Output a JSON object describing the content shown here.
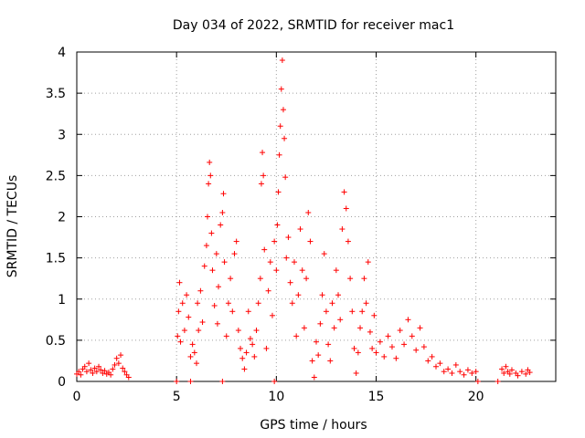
{
  "chart_data": {
    "type": "scatter",
    "title": "Day 034 of 2022, SRMTID for receiver mac1",
    "xlabel": "GPS time / hours",
    "ylabel": "SRMTID / TECUs",
    "xlim": [
      0,
      24
    ],
    "ylim": [
      0,
      4
    ],
    "xticks": [
      0,
      5,
      10,
      15,
      20
    ],
    "yticks": [
      0,
      0.5,
      1,
      1.5,
      2,
      2.5,
      3,
      3.5,
      4
    ],
    "ytick_labels": [
      "0",
      "0.5",
      "1",
      "1.5",
      "2",
      "2.5",
      "3",
      "3.5",
      "4"
    ],
    "grid": true,
    "marker": "+",
    "marker_color": "#ff0000",
    "series": [
      {
        "name": "SRMTID",
        "points": [
          [
            0.0,
            0.09
          ],
          [
            0.1,
            0.12
          ],
          [
            0.2,
            0.08
          ],
          [
            0.3,
            0.15
          ],
          [
            0.4,
            0.18
          ],
          [
            0.5,
            0.12
          ],
          [
            0.6,
            0.22
          ],
          [
            0.7,
            0.14
          ],
          [
            0.8,
            0.1
          ],
          [
            0.9,
            0.16
          ],
          [
            1.0,
            0.12
          ],
          [
            1.1,
            0.18
          ],
          [
            1.2,
            0.14
          ],
          [
            1.3,
            0.1
          ],
          [
            1.4,
            0.13
          ],
          [
            1.5,
            0.09
          ],
          [
            1.6,
            0.11
          ],
          [
            1.7,
            0.08
          ],
          [
            1.8,
            0.15
          ],
          [
            1.9,
            0.2
          ],
          [
            2.0,
            0.28
          ],
          [
            2.1,
            0.22
          ],
          [
            2.2,
            0.32
          ],
          [
            2.3,
            0.16
          ],
          [
            2.4,
            0.12
          ],
          [
            2.5,
            0.08
          ],
          [
            2.6,
            0.05
          ],
          [
            5.0,
            0.0
          ],
          [
            5.7,
            0.0
          ],
          [
            7.3,
            0.0
          ],
          [
            9.9,
            0.0
          ],
          [
            20.1,
            0.0
          ],
          [
            21.1,
            0.0
          ],
          [
            5.05,
            0.55
          ],
          [
            5.1,
            0.85
          ],
          [
            5.15,
            1.2
          ],
          [
            5.2,
            0.48
          ],
          [
            5.3,
            0.95
          ],
          [
            5.4,
            0.62
          ],
          [
            5.5,
            1.05
          ],
          [
            5.6,
            0.78
          ],
          [
            5.7,
            0.3
          ],
          [
            5.8,
            0.45
          ],
          [
            5.9,
            0.35
          ],
          [
            6.0,
            0.22
          ],
          [
            6.05,
            0.95
          ],
          [
            6.1,
            0.62
          ],
          [
            6.2,
            1.1
          ],
          [
            6.3,
            0.72
          ],
          [
            6.4,
            1.4
          ],
          [
            6.5,
            1.65
          ],
          [
            6.55,
            2.0
          ],
          [
            6.6,
            2.4
          ],
          [
            6.65,
            2.66
          ],
          [
            6.7,
            2.5
          ],
          [
            6.75,
            1.8
          ],
          [
            6.8,
            1.35
          ],
          [
            6.9,
            0.92
          ],
          [
            7.0,
            1.55
          ],
          [
            7.05,
            0.7
          ],
          [
            7.1,
            1.15
          ],
          [
            7.2,
            1.9
          ],
          [
            7.3,
            2.05
          ],
          [
            7.35,
            2.28
          ],
          [
            7.4,
            1.45
          ],
          [
            7.5,
            0.55
          ],
          [
            7.6,
            0.95
          ],
          [
            7.7,
            1.25
          ],
          [
            7.8,
            0.85
          ],
          [
            7.9,
            1.55
          ],
          [
            8.0,
            1.7
          ],
          [
            8.1,
            0.62
          ],
          [
            8.2,
            0.4
          ],
          [
            8.3,
            0.28
          ],
          [
            8.4,
            0.15
          ],
          [
            8.5,
            0.35
          ],
          [
            8.6,
            0.85
          ],
          [
            8.7,
            0.52
          ],
          [
            8.8,
            0.45
          ],
          [
            8.9,
            0.3
          ],
          [
            9.0,
            0.62
          ],
          [
            9.1,
            0.95
          ],
          [
            9.2,
            1.25
          ],
          [
            9.25,
            2.4
          ],
          [
            9.3,
            2.78
          ],
          [
            9.35,
            2.5
          ],
          [
            9.4,
            1.6
          ],
          [
            9.5,
            0.4
          ],
          [
            9.6,
            1.1
          ],
          [
            9.7,
            1.45
          ],
          [
            9.8,
            0.8
          ],
          [
            9.9,
            1.7
          ],
          [
            10.0,
            1.35
          ],
          [
            10.05,
            1.9
          ],
          [
            10.1,
            2.3
          ],
          [
            10.15,
            2.75
          ],
          [
            10.2,
            3.1
          ],
          [
            10.25,
            3.55
          ],
          [
            10.3,
            3.9
          ],
          [
            10.35,
            3.3
          ],
          [
            10.4,
            2.95
          ],
          [
            10.45,
            2.48
          ],
          [
            10.5,
            1.5
          ],
          [
            10.6,
            1.75
          ],
          [
            10.7,
            1.2
          ],
          [
            10.8,
            0.95
          ],
          [
            10.9,
            1.45
          ],
          [
            11.0,
            0.55
          ],
          [
            11.1,
            1.05
          ],
          [
            11.2,
            1.85
          ],
          [
            11.3,
            1.35
          ],
          [
            11.4,
            0.65
          ],
          [
            11.5,
            1.25
          ],
          [
            11.6,
            2.05
          ],
          [
            11.7,
            1.7
          ],
          [
            11.8,
            0.25
          ],
          [
            11.9,
            0.05
          ],
          [
            12.0,
            0.48
          ],
          [
            12.1,
            0.32
          ],
          [
            12.2,
            0.7
          ],
          [
            12.3,
            1.05
          ],
          [
            12.4,
            1.55
          ],
          [
            12.5,
            0.85
          ],
          [
            12.6,
            0.45
          ],
          [
            12.7,
            0.25
          ],
          [
            12.8,
            0.95
          ],
          [
            12.9,
            0.65
          ],
          [
            13.0,
            1.35
          ],
          [
            13.1,
            1.05
          ],
          [
            13.2,
            0.75
          ],
          [
            13.3,
            1.85
          ],
          [
            13.4,
            2.3
          ],
          [
            13.5,
            2.1
          ],
          [
            13.6,
            1.7
          ],
          [
            13.7,
            1.25
          ],
          [
            13.8,
            0.85
          ],
          [
            13.9,
            0.4
          ],
          [
            14.0,
            0.1
          ],
          [
            14.1,
            0.35
          ],
          [
            14.2,
            0.65
          ],
          [
            14.3,
            0.85
          ],
          [
            14.4,
            1.25
          ],
          [
            14.5,
            0.95
          ],
          [
            14.6,
            1.45
          ],
          [
            14.7,
            0.6
          ],
          [
            14.8,
            0.4
          ],
          [
            14.9,
            0.8
          ],
          [
            15.0,
            0.35
          ],
          [
            15.2,
            0.48
          ],
          [
            15.4,
            0.3
          ],
          [
            15.6,
            0.55
          ],
          [
            15.8,
            0.42
          ],
          [
            16.0,
            0.28
          ],
          [
            16.2,
            0.62
          ],
          [
            16.4,
            0.45
          ],
          [
            16.6,
            0.75
          ],
          [
            16.8,
            0.55
          ],
          [
            17.0,
            0.38
          ],
          [
            17.2,
            0.65
          ],
          [
            17.4,
            0.42
          ],
          [
            17.6,
            0.25
          ],
          [
            17.8,
            0.3
          ],
          [
            18.0,
            0.18
          ],
          [
            18.2,
            0.22
          ],
          [
            18.4,
            0.12
          ],
          [
            18.6,
            0.15
          ],
          [
            18.8,
            0.1
          ],
          [
            19.0,
            0.2
          ],
          [
            19.2,
            0.12
          ],
          [
            19.4,
            0.08
          ],
          [
            19.6,
            0.14
          ],
          [
            19.8,
            0.1
          ],
          [
            20.0,
            0.12
          ],
          [
            21.3,
            0.15
          ],
          [
            21.4,
            0.1
          ],
          [
            21.5,
            0.18
          ],
          [
            21.6,
            0.12
          ],
          [
            21.7,
            0.09
          ],
          [
            21.8,
            0.14
          ],
          [
            22.0,
            0.1
          ],
          [
            22.1,
            0.07
          ],
          [
            22.3,
            0.12
          ],
          [
            22.5,
            0.09
          ],
          [
            22.6,
            0.14
          ],
          [
            22.7,
            0.11
          ]
        ]
      }
    ]
  }
}
